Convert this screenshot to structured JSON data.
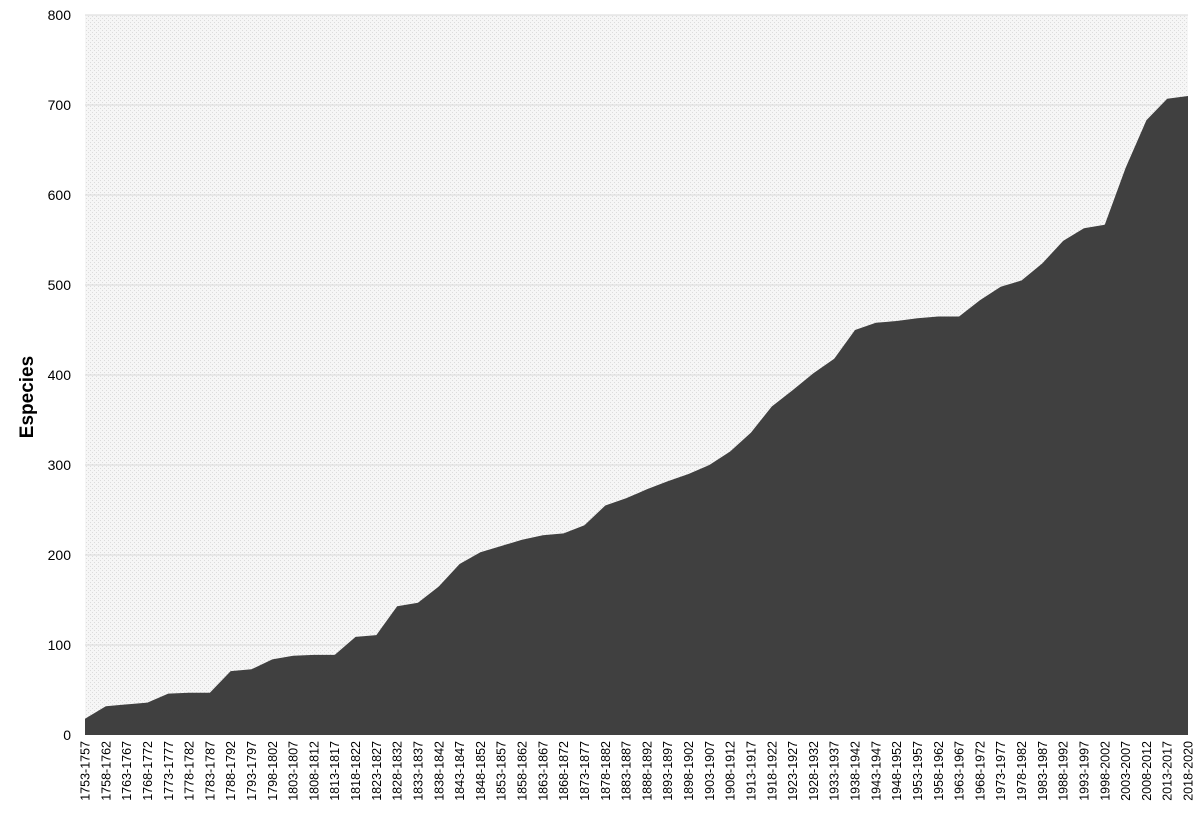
{
  "chart_data": {
    "type": "area",
    "title": "",
    "xlabel": "",
    "ylabel": "Especies",
    "ylim": [
      0,
      800
    ],
    "yticks": [
      0,
      100,
      200,
      300,
      400,
      500,
      600,
      700,
      800
    ],
    "grid": true,
    "legend": "none",
    "colors": {
      "area": "#404040",
      "plot_background": "#f4f4f4",
      "gridline": "#d9d9d9"
    },
    "categories": [
      "1753-1757",
      "1758-1762",
      "1763-1767",
      "1768-1772",
      "1773-1777",
      "1778-1782",
      "1783-1787",
      "1788-1792",
      "1793-1797",
      "1798-1802",
      "1803-1807",
      "1808-1812",
      "1813-1817",
      "1818-1822",
      "1823-1827",
      "1828-1832",
      "1833-1837",
      "1838-1842",
      "1843-1847",
      "1848-1852",
      "1853-1857",
      "1858-1862",
      "1863-1867",
      "1868-1872",
      "1873-1877",
      "1878-1882",
      "1883-1887",
      "1888-1892",
      "1893-1897",
      "1898-1902",
      "1903-1907",
      "1908-1912",
      "1913-1917",
      "1918-1922",
      "1923-1927",
      "1928-1932",
      "1933-1937",
      "1938-1942",
      "1943-1947",
      "1948-1952",
      "1953-1957",
      "1958-1962",
      "1963-1967",
      "1968-1972",
      "1973-1977",
      "1978-1982",
      "1983-1987",
      "1988-1992",
      "1993-1997",
      "1998-2002",
      "2003-2007",
      "2008-2012",
      "2013-2017",
      "2018-2020"
    ],
    "values": [
      18,
      32,
      34,
      36,
      46,
      47,
      47,
      71,
      73,
      84,
      88,
      89,
      89,
      109,
      111,
      143,
      147,
      165,
      190,
      203,
      210,
      217,
      222,
      224,
      233,
      255,
      263,
      273,
      282,
      290,
      300,
      315,
      336,
      365,
      383,
      402,
      418,
      450,
      458,
      460,
      463,
      465,
      465,
      483,
      498,
      505,
      524,
      549,
      563,
      567,
      630,
      683,
      707,
      710
    ]
  }
}
